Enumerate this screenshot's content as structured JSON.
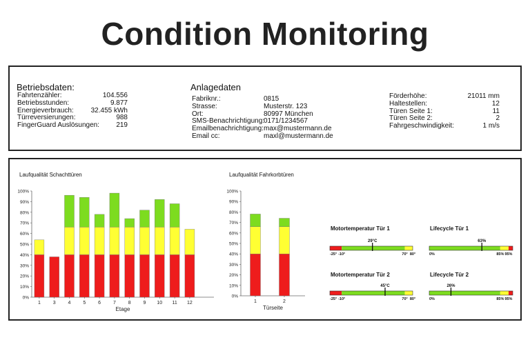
{
  "title": "Condition Monitoring",
  "betriebsdaten": {
    "heading": "Betriebsdaten:",
    "rows": [
      {
        "label": "Fahrtenzähler:",
        "value": "104.556"
      },
      {
        "label": "Betriebsstunden:",
        "value": "9.877"
      },
      {
        "label": "Energieverbrauch:",
        "value": "32.455 kWh"
      },
      {
        "label": "Türreversierungen:",
        "value": "988"
      },
      {
        "label": "FingerGuard Auslösungen:",
        "value": "219"
      }
    ]
  },
  "anlagedaten": {
    "heading": "Anlagedaten",
    "rows": [
      {
        "label": "Fabriknr.:",
        "value": "0815"
      },
      {
        "label": "Strasse:",
        "value": "Musterstr. 123"
      },
      {
        "label": "Ort:",
        "value": "80997 München"
      },
      {
        "label": "SMS-Benachrichtigung:",
        "value": "0171/1234567"
      },
      {
        "label": "Emailbenachrichtigung:",
        "value": "max@mustermann.de"
      },
      {
        "label": "Email cc:",
        "value": "maxl@mustermann.de"
      }
    ]
  },
  "foerderdaten": {
    "rows": [
      {
        "label": "Förderhöhe:",
        "value": "21011 mm"
      },
      {
        "label": "Haltestellen:",
        "value": "12"
      },
      {
        "label": "Türen Seite 1:",
        "value": "11"
      },
      {
        "label": "Türen Seite 2:",
        "value": "2"
      },
      {
        "label": "Fahrgeschwindigkeit:",
        "value": "1 m/s"
      }
    ]
  },
  "colors": {
    "red": "#ee1c1c",
    "yellow": "#ffff33",
    "green": "#7ddc1f",
    "border": "#222222"
  },
  "chart_data": [
    {
      "type": "bar",
      "title": "Laufqualität Schachttüren",
      "xlabel": "Etage",
      "ylabel": "",
      "ylim": [
        0,
        100
      ],
      "yticks": [
        "0%",
        "10%",
        "20%",
        "30%",
        "40%",
        "50%",
        "60%",
        "70%",
        "80%",
        "90%",
        "100%"
      ],
      "categories": [
        "1",
        "3",
        "4",
        "5",
        "6",
        "7",
        "8",
        "9",
        "10",
        "11",
        "12"
      ],
      "values": [
        54,
        38,
        96,
        94,
        78,
        98,
        74,
        82,
        92,
        88,
        64
      ],
      "stacked_bands": {
        "red_to": 40,
        "yellow_to": 66
      }
    },
    {
      "type": "bar",
      "title": "Laufqualität Fahrkorbtüren",
      "xlabel": "Türseite",
      "ylabel": "",
      "ylim": [
        0,
        100
      ],
      "yticks": [
        "0%",
        "10%",
        "20%",
        "30%",
        "40%",
        "50%",
        "60%",
        "70%",
        "80%",
        "90%",
        "100%"
      ],
      "categories": [
        "1",
        "2"
      ],
      "values": [
        78,
        74
      ],
      "stacked_bands": {
        "red_to": 40,
        "yellow_to": 66
      }
    }
  ],
  "gauges": [
    {
      "title": "Motortemperatur Tür 1",
      "value_label": "29°C",
      "value": 29,
      "min": -25,
      "max": 80,
      "segments": [
        [
          -25,
          -10,
          "red"
        ],
        [
          -10,
          70,
          "green"
        ],
        [
          70,
          80,
          "yellow"
        ]
      ],
      "ticks": [
        {
          "label": "-25°",
          "at": -25
        },
        {
          "label": "-10°",
          "at": -10
        },
        {
          "label": "70°",
          "at": 70
        },
        {
          "label": "80°",
          "at": 80
        }
      ]
    },
    {
      "title": "Lifecycle Tür 1",
      "value_label": "63%",
      "value": 63,
      "min": 0,
      "max": 100,
      "segments": [
        [
          0,
          85,
          "green"
        ],
        [
          85,
          95,
          "yellow"
        ],
        [
          95,
          100,
          "red"
        ]
      ],
      "ticks": [
        {
          "label": "0%",
          "at": 0
        },
        {
          "label": "85%",
          "at": 85
        },
        {
          "label": "95%",
          "at": 95
        }
      ]
    },
    {
      "title": "Motortemperatur Tür 2",
      "value_label": "45°C",
      "value": 45,
      "min": -25,
      "max": 80,
      "segments": [
        [
          -25,
          -10,
          "red"
        ],
        [
          -10,
          70,
          "green"
        ],
        [
          70,
          80,
          "yellow"
        ]
      ],
      "ticks": [
        {
          "label": "-25°",
          "at": -25
        },
        {
          "label": "-10°",
          "at": -10
        },
        {
          "label": "70°",
          "at": 70
        },
        {
          "label": "80°",
          "at": 80
        }
      ]
    },
    {
      "title": "Lifecycle Tür 2",
      "value_label": "26%",
      "value": 26,
      "min": 0,
      "max": 100,
      "segments": [
        [
          0,
          85,
          "green"
        ],
        [
          85,
          95,
          "yellow"
        ],
        [
          95,
          100,
          "red"
        ]
      ],
      "ticks": [
        {
          "label": "0%",
          "at": 0
        },
        {
          "label": "85%",
          "at": 85
        },
        {
          "label": "95%",
          "at": 95
        }
      ]
    }
  ]
}
